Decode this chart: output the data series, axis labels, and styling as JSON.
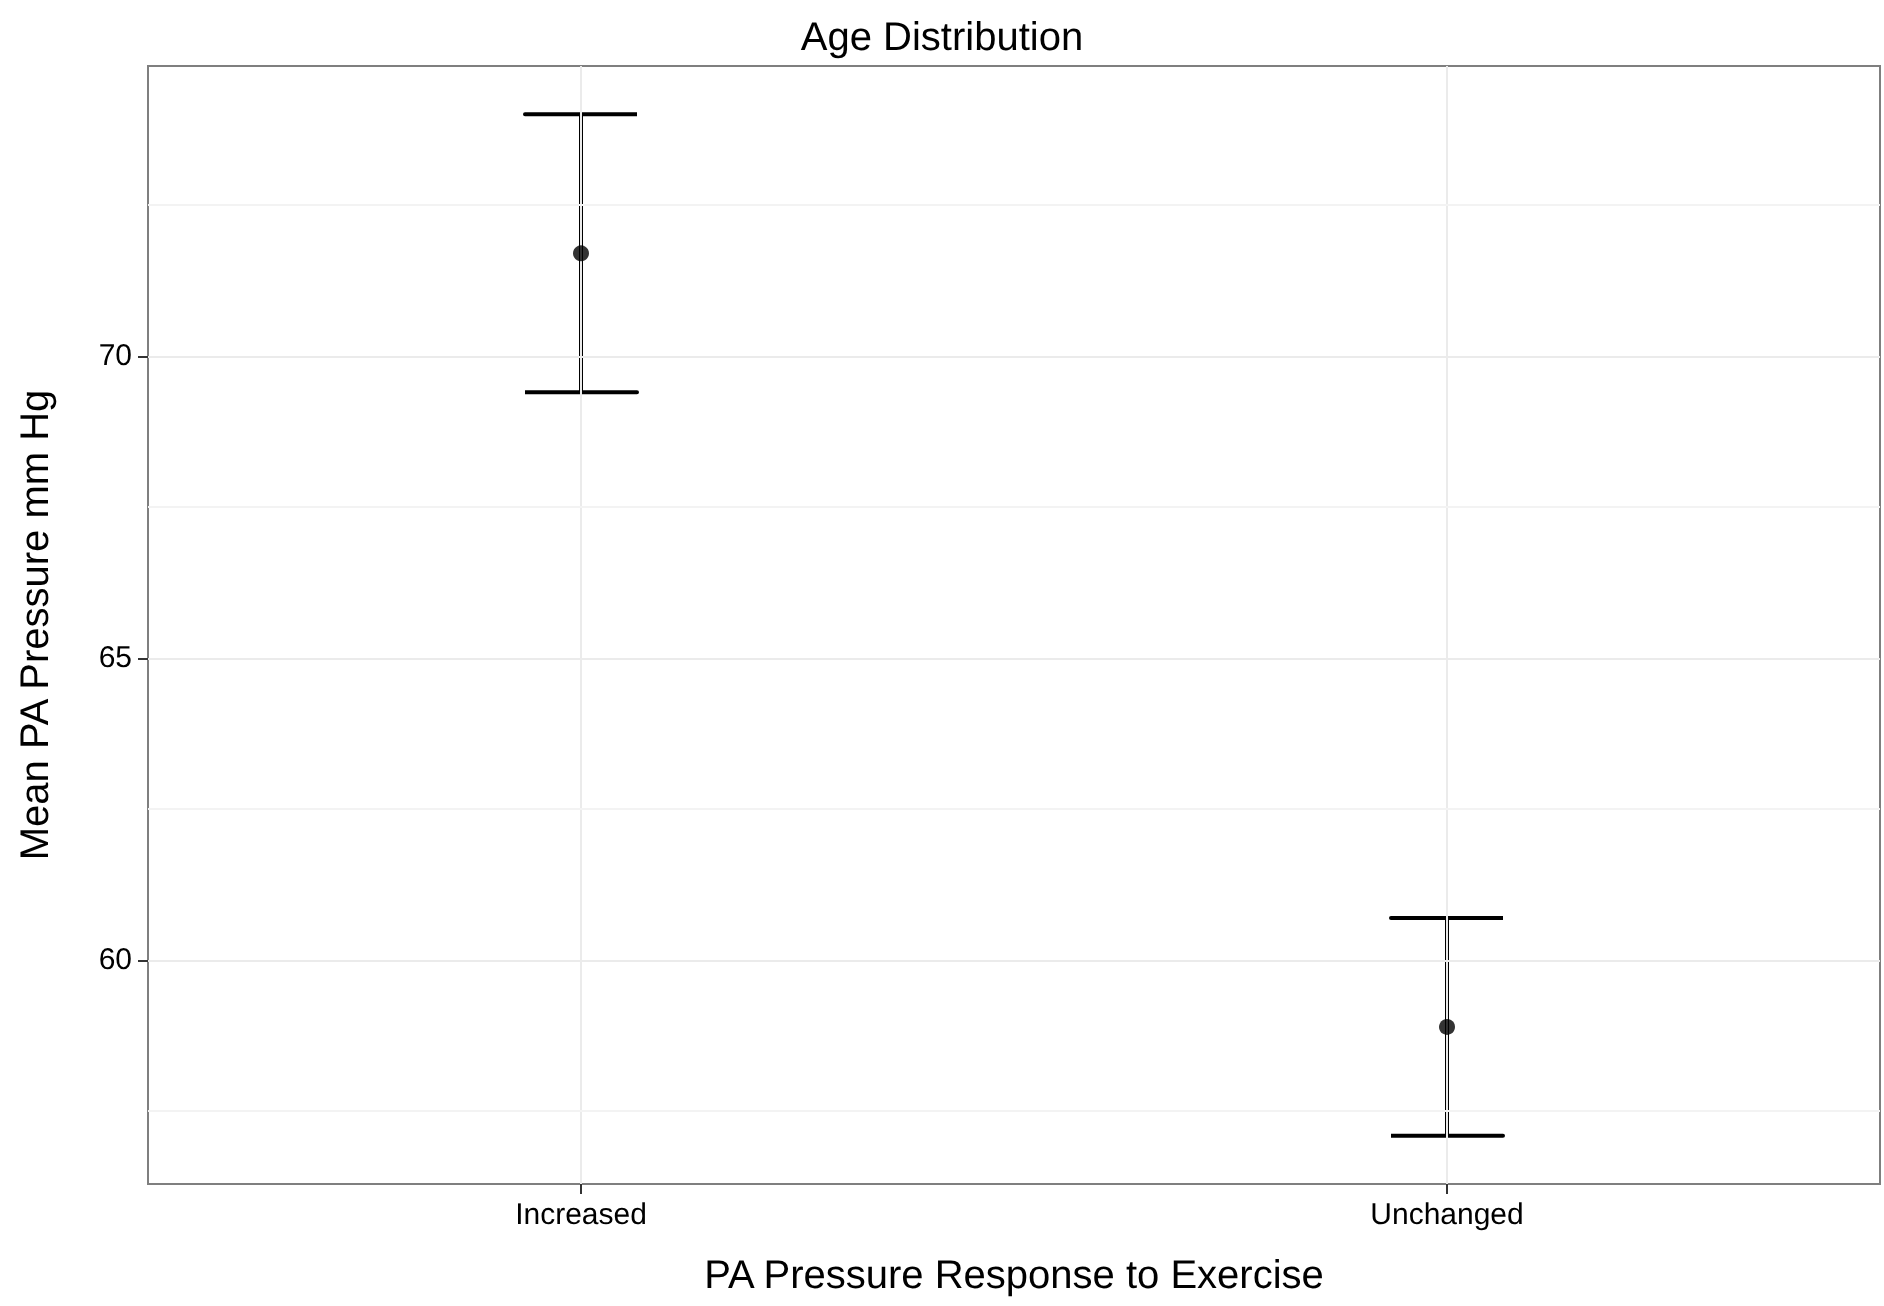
{
  "chart_data": {
    "type": "scatter",
    "title": "Age Distribution",
    "xlabel": "PA Pressure Response to Exercise",
    "ylabel": "Mean PA Pressure mm Hg",
    "categories": [
      "Increased",
      "Unchanged"
    ],
    "values": [
      71.7,
      58.9
    ],
    "errors": [
      2.3,
      1.8
    ],
    "color": "#000000",
    "ylim": [
      56.3,
      74.8
    ],
    "yticks": [
      {
        "value": 57.5,
        "label": null
      },
      60,
      {
        "value": 62.5,
        "label": null
      },
      65,
      {
        "value": 67.5,
        "label": null
      },
      70,
      {
        "value": 72.5,
        "label": null
      }
    ],
    "grid": true,
    "marker": "circle"
  }
}
